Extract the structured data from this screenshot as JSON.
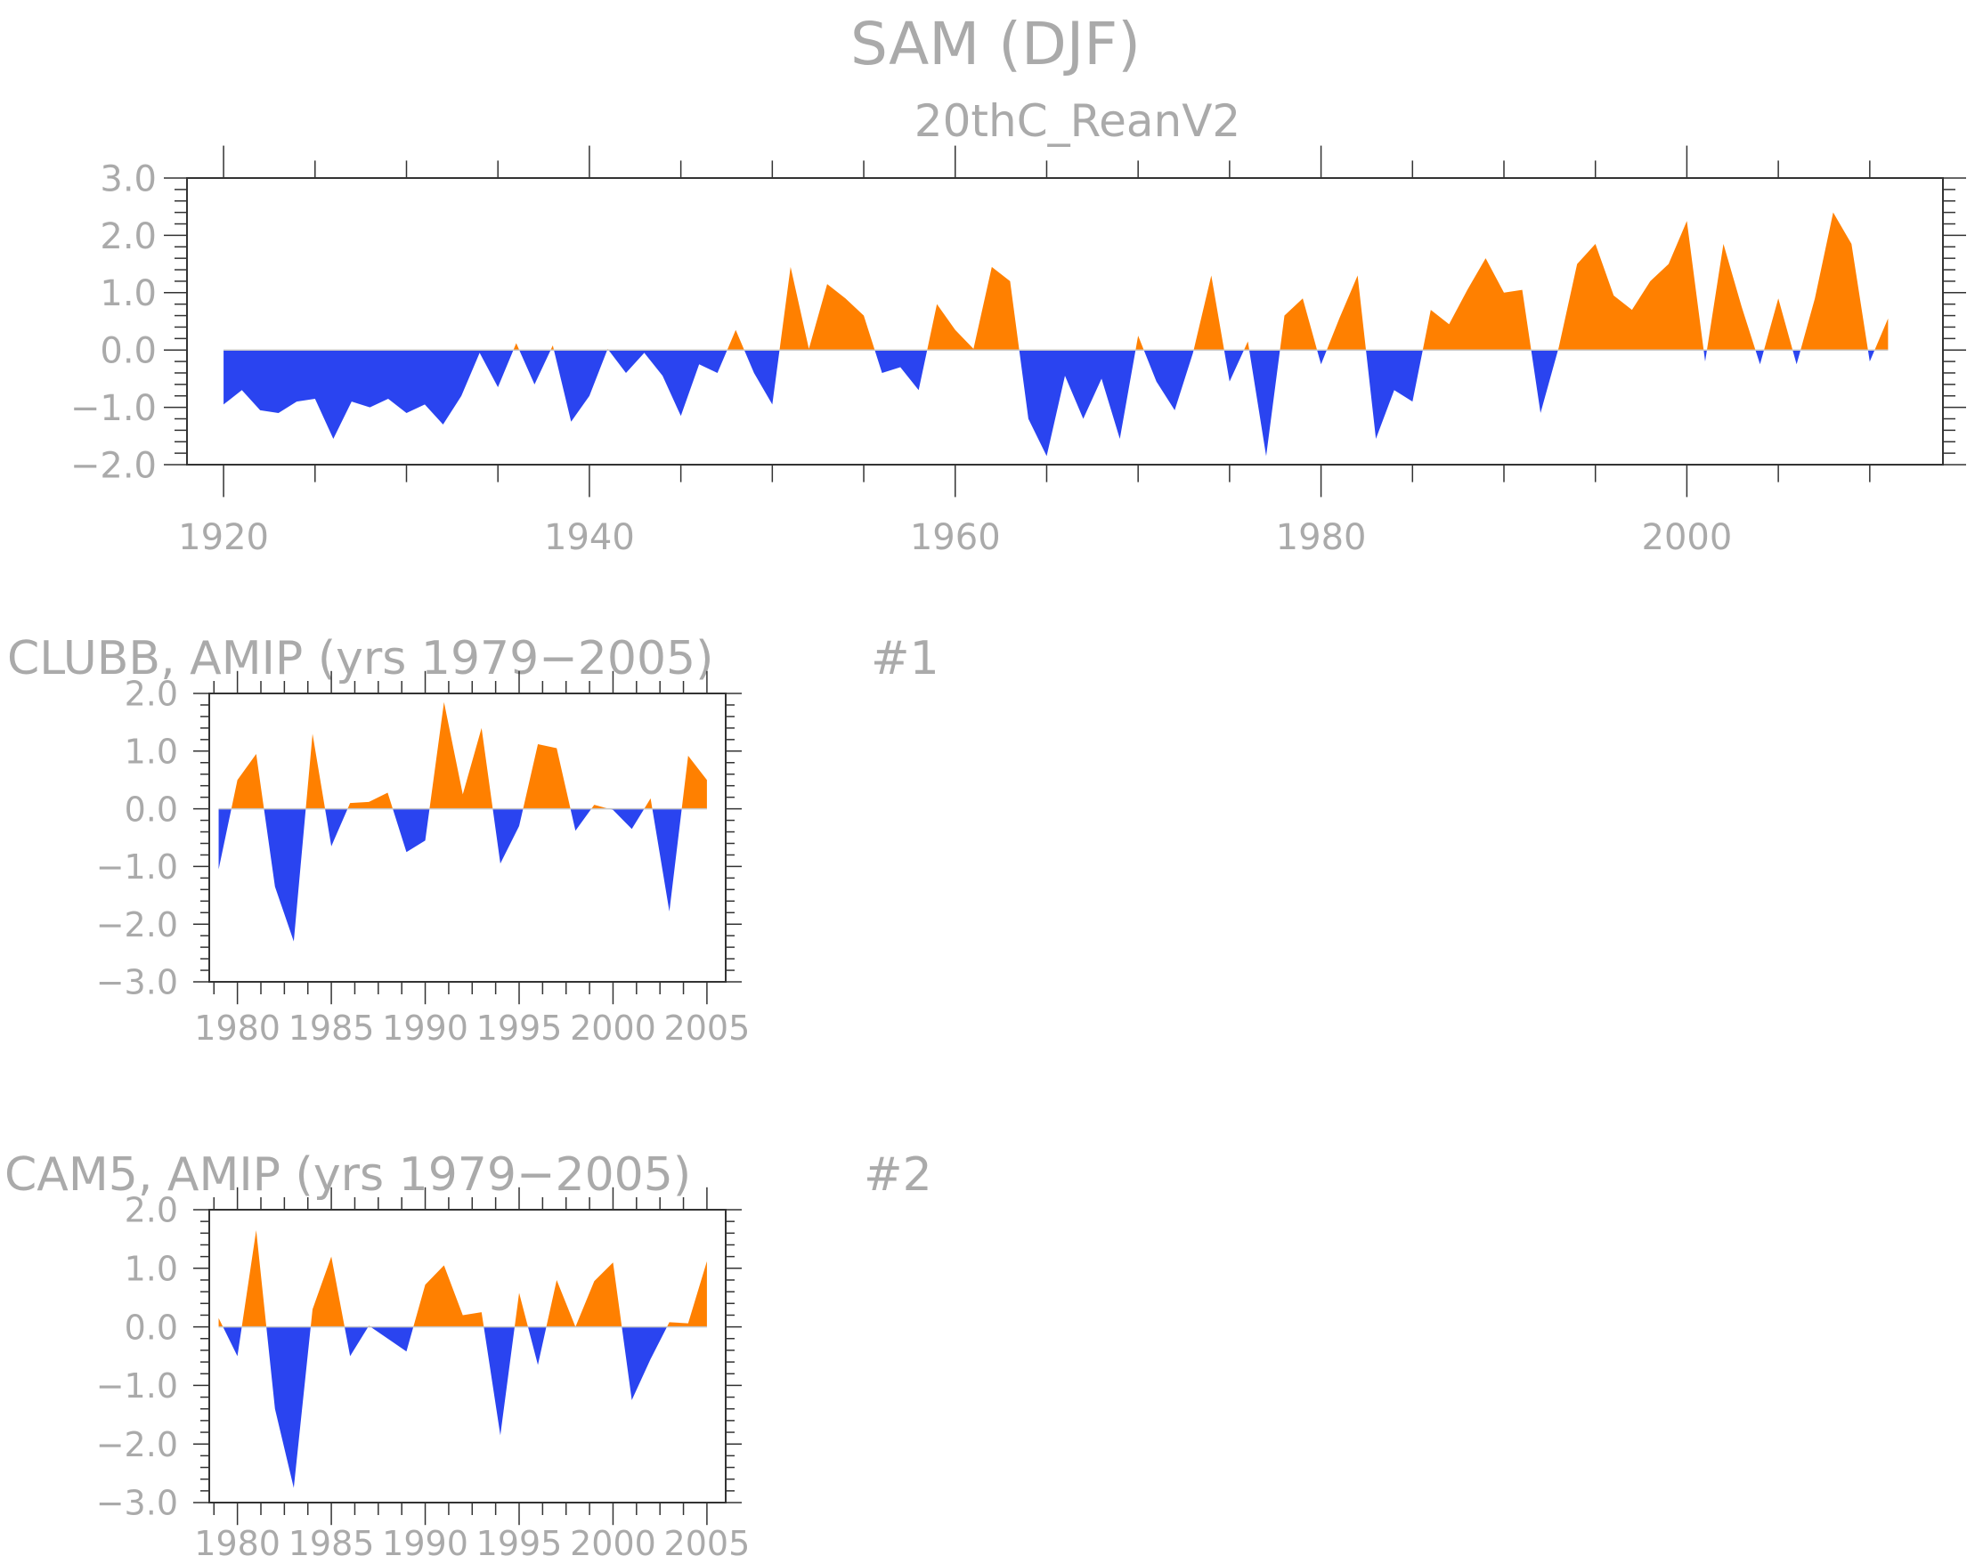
{
  "figure": {
    "title": "SAM (DJF)"
  },
  "colors": {
    "positive": "#ff8000",
    "negative": "#2a44f0",
    "axis": "#333333",
    "text": "#aaaaaa"
  },
  "chart_data": [
    {
      "type": "area",
      "id": "reanalysis",
      "title": "20thC_ReanV2",
      "label_right": "",
      "xlabel": "",
      "ylabel": "",
      "xlim": [
        1918,
        2014
      ],
      "ylim": [
        -2.0,
        3.0
      ],
      "yticks": [
        -2.0,
        -1.0,
        0.0,
        1.0,
        2.0,
        3.0
      ],
      "ytick_labels": [
        "−2.0",
        "−1.0",
        "0.0",
        "1.0",
        "2.0",
        "3.0"
      ],
      "xticks": [
        1920,
        1940,
        1960,
        1980,
        2000
      ],
      "xtick_labels": [
        "1920",
        "1940",
        "1960",
        "1980",
        "2000"
      ],
      "x_start": 1920,
      "values": [
        -0.95,
        -0.7,
        -1.05,
        -1.1,
        -0.9,
        -0.85,
        -1.55,
        -0.9,
        -1.0,
        -0.85,
        -1.1,
        -0.95,
        -1.3,
        -0.8,
        -0.05,
        -0.65,
        0.12,
        -0.6,
        0.08,
        -1.25,
        -0.8,
        0.02,
        -0.4,
        -0.05,
        -0.45,
        -1.15,
        -0.25,
        -0.4,
        0.35,
        -0.4,
        -0.95,
        1.45,
        0.02,
        1.15,
        0.9,
        0.6,
        -0.4,
        -0.3,
        -0.7,
        0.8,
        0.35,
        0.02,
        1.45,
        1.2,
        -1.2,
        -1.85,
        -0.45,
        -1.2,
        -0.5,
        -1.55,
        0.25,
        -0.55,
        -1.05,
        -0.05,
        1.3,
        -0.55,
        0.15,
        -1.85,
        0.6,
        0.9,
        -0.25,
        0.55,
        1.3,
        -1.55,
        -0.7,
        -0.9,
        0.7,
        0.45,
        1.05,
        1.6,
        1.0,
        1.05,
        -1.1,
        0.05,
        1.5,
        1.85,
        0.95,
        0.7,
        1.2,
        1.5,
        2.25,
        -0.2,
        1.85,
        0.75,
        -0.25,
        0.9,
        -0.25,
        0.9,
        2.4,
        1.85,
        -0.2,
        0.55
      ]
    },
    {
      "type": "area",
      "id": "clubb",
      "title": "CLUBB, AMIP (yrs 1979−2005)",
      "label_right": "#1",
      "xlabel": "",
      "ylabel": "",
      "xlim": [
        1978.5,
        2006
      ],
      "ylim": [
        -3.0,
        2.0
      ],
      "yticks": [
        -3.0,
        -2.0,
        -1.0,
        0.0,
        1.0,
        2.0
      ],
      "ytick_labels": [
        "−3.0",
        "−2.0",
        "−1.0",
        "0.0",
        "1.0",
        "2.0"
      ],
      "xticks": [
        1980,
        1985,
        1990,
        1995,
        2000,
        2005
      ],
      "xtick_labels": [
        "1980",
        "1985",
        "1990",
        "1995",
        "2000",
        "2005"
      ],
      "x_start": 1979,
      "values": [
        -1.05,
        0.5,
        0.95,
        -1.35,
        -2.3,
        1.3,
        -0.65,
        0.1,
        0.12,
        0.28,
        -0.75,
        -0.55,
        1.85,
        0.25,
        1.4,
        -0.95,
        -0.3,
        1.12,
        1.05,
        -0.38,
        0.07,
        -0.02,
        -0.35,
        0.18,
        -1.78,
        0.92,
        0.5
      ]
    },
    {
      "type": "area",
      "id": "cam5",
      "title": "CAM5, AMIP (yrs 1979−2005)",
      "label_right": "#2",
      "xlabel": "",
      "ylabel": "",
      "xlim": [
        1978.5,
        2006
      ],
      "ylim": [
        -3.0,
        2.0
      ],
      "yticks": [
        -3.0,
        -2.0,
        -1.0,
        0.0,
        1.0,
        2.0
      ],
      "ytick_labels": [
        "−3.0",
        "−2.0",
        "−1.0",
        "0.0",
        "1.0",
        "2.0"
      ],
      "xticks": [
        1980,
        1985,
        1990,
        1995,
        2000,
        2005
      ],
      "xtick_labels": [
        "1980",
        "1985",
        "1990",
        "1995",
        "2000",
        "2005"
      ],
      "x_start": 1979,
      "values": [
        0.15,
        -0.5,
        1.65,
        -1.4,
        -2.75,
        0.3,
        1.2,
        -0.5,
        0.02,
        -0.2,
        -0.42,
        0.72,
        1.05,
        0.2,
        0.25,
        -1.85,
        0.58,
        -0.65,
        0.8,
        0.0,
        0.78,
        1.1,
        -1.25,
        -0.55,
        0.08,
        0.06,
        1.12
      ]
    }
  ]
}
